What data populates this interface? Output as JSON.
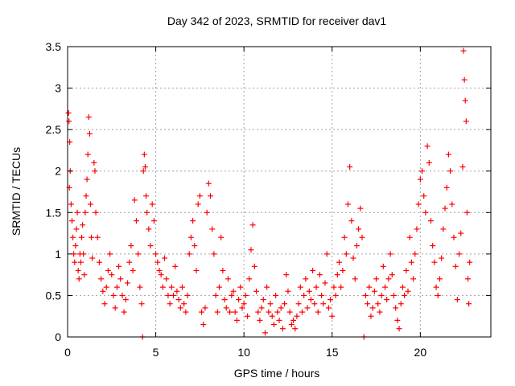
{
  "chart_data": {
    "type": "scatter",
    "title": "Day 342 of 2023, SRMTID for receiver dav1",
    "xlabel": "GPS time / hours",
    "ylabel": "SRMTID / TECUs",
    "xlim": [
      0,
      24
    ],
    "ylim": [
      0,
      3.5
    ],
    "xticks": [
      0,
      5,
      10,
      15,
      20
    ],
    "xtick_labels": [
      "0",
      "5",
      "10",
      "15",
      "20"
    ],
    "yticks": [
      0,
      0.5,
      1,
      1.5,
      2,
      2.5,
      3,
      3.5
    ],
    "ytick_labels": [
      "0",
      "0.5",
      "1",
      "1.5",
      "2",
      "2.5",
      "3",
      "3.5"
    ],
    "grid": true,
    "marker": "plus",
    "series": [
      {
        "name": "SRMTID",
        "color": "#ff0000",
        "points": [
          [
            0.05,
            2.7
          ],
          [
            0.08,
            2.6
          ],
          [
            0.12,
            2.35
          ],
          [
            0.15,
            2.0
          ],
          [
            0.1,
            1.8
          ],
          [
            0.2,
            1.6
          ],
          [
            0.25,
            1.4
          ],
          [
            0.3,
            1.2
          ],
          [
            0.35,
            1.0
          ],
          [
            0.4,
            0.9
          ],
          [
            0.45,
            1.1
          ],
          [
            0.5,
            1.3
          ],
          [
            0.55,
            1.5
          ],
          [
            0.6,
            0.8
          ],
          [
            0.65,
            0.7
          ],
          [
            0.7,
            1.0
          ],
          [
            0.75,
            0.9
          ],
          [
            0.8,
            1.2
          ],
          [
            0.85,
            1.35
          ],
          [
            0.9,
            1.0
          ],
          [
            0.95,
            0.75
          ],
          [
            1.0,
            1.5
          ],
          [
            1.05,
            1.7
          ],
          [
            1.1,
            1.9
          ],
          [
            1.15,
            2.2
          ],
          [
            1.2,
            2.65
          ],
          [
            1.25,
            2.45
          ],
          [
            1.3,
            1.6
          ],
          [
            1.35,
            1.2
          ],
          [
            1.4,
            0.95
          ],
          [
            1.5,
            2.1
          ],
          [
            1.55,
            2.0
          ],
          [
            1.6,
            1.5
          ],
          [
            1.7,
            1.2
          ],
          [
            1.8,
            0.9
          ],
          [
            1.9,
            0.7
          ],
          [
            2.0,
            0.55
          ],
          [
            2.1,
            0.4
          ],
          [
            2.2,
            0.6
          ],
          [
            2.3,
            0.8
          ],
          [
            2.4,
            1.0
          ],
          [
            2.5,
            0.75
          ],
          [
            2.6,
            0.5
          ],
          [
            2.7,
            0.35
          ],
          [
            2.8,
            0.6
          ],
          [
            2.9,
            0.85
          ],
          [
            3.0,
            0.7
          ],
          [
            3.1,
            0.5
          ],
          [
            3.2,
            0.3
          ],
          [
            3.3,
            0.45
          ],
          [
            3.4,
            0.65
          ],
          [
            3.5,
            0.9
          ],
          [
            3.6,
            1.1
          ],
          [
            3.7,
            0.8
          ],
          [
            3.8,
            1.65
          ],
          [
            3.9,
            1.4
          ],
          [
            4.0,
            1.0
          ],
          [
            4.1,
            0.6
          ],
          [
            4.2,
            0.4
          ],
          [
            4.25,
            0.0
          ],
          [
            4.3,
            2.0
          ],
          [
            4.35,
            2.2
          ],
          [
            4.4,
            2.05
          ],
          [
            4.45,
            1.7
          ],
          [
            4.5,
            1.5
          ],
          [
            4.6,
            1.3
          ],
          [
            4.7,
            1.1
          ],
          [
            4.8,
            1.6
          ],
          [
            4.9,
            1.4
          ],
          [
            5.0,
            1.0
          ],
          [
            5.1,
            0.9
          ],
          [
            5.2,
            0.8
          ],
          [
            5.3,
            0.75
          ],
          [
            5.4,
            0.6
          ],
          [
            5.5,
            0.95
          ],
          [
            5.6,
            0.7
          ],
          [
            5.7,
            0.5
          ],
          [
            5.8,
            0.4
          ],
          [
            5.9,
            0.6
          ],
          [
            6.0,
            0.5
          ],
          [
            6.1,
            0.85
          ],
          [
            6.2,
            0.55
          ],
          [
            6.3,
            0.45
          ],
          [
            6.4,
            0.35
          ],
          [
            6.5,
            0.6
          ],
          [
            6.6,
            0.4
          ],
          [
            6.7,
            0.3
          ],
          [
            6.8,
            0.5
          ],
          [
            6.9,
            1.0
          ],
          [
            7.0,
            1.2
          ],
          [
            7.1,
            1.4
          ],
          [
            7.2,
            1.1
          ],
          [
            7.3,
            0.8
          ],
          [
            7.4,
            1.6
          ],
          [
            7.5,
            1.7
          ],
          [
            7.6,
            0.3
          ],
          [
            7.7,
            0.15
          ],
          [
            7.8,
            0.35
          ],
          [
            7.9,
            1.5
          ],
          [
            8.0,
            1.85
          ],
          [
            8.1,
            1.7
          ],
          [
            8.2,
            1.3
          ],
          [
            8.3,
            1.0
          ],
          [
            8.4,
            0.5
          ],
          [
            8.5,
            0.3
          ],
          [
            8.6,
            0.6
          ],
          [
            8.7,
            1.2
          ],
          [
            8.8,
            0.8
          ],
          [
            8.9,
            0.45
          ],
          [
            9.0,
            0.35
          ],
          [
            9.1,
            0.7
          ],
          [
            9.2,
            0.3
          ],
          [
            9.3,
            0.5
          ],
          [
            9.4,
            0.55
          ],
          [
            9.5,
            0.3
          ],
          [
            9.6,
            0.2
          ],
          [
            9.7,
            0.45
          ],
          [
            9.8,
            0.6
          ],
          [
            9.9,
            0.35
          ],
          [
            10.0,
            0.4
          ],
          [
            10.1,
            0.5
          ],
          [
            10.2,
            0.25
          ],
          [
            10.3,
            0.7
          ],
          [
            10.4,
            1.05
          ],
          [
            10.5,
            1.35
          ],
          [
            10.6,
            0.85
          ],
          [
            10.7,
            0.55
          ],
          [
            10.8,
            0.3
          ],
          [
            10.9,
            0.2
          ],
          [
            11.0,
            0.35
          ],
          [
            11.1,
            0.45
          ],
          [
            11.2,
            0.05
          ],
          [
            11.3,
            0.6
          ],
          [
            11.4,
            0.3
          ],
          [
            11.5,
            0.4
          ],
          [
            11.6,
            0.25
          ],
          [
            11.7,
            0.15
          ],
          [
            11.8,
            0.5
          ],
          [
            11.9,
            0.3
          ],
          [
            12.0,
            0.2
          ],
          [
            12.1,
            0.35
          ],
          [
            12.2,
            0.1
          ],
          [
            12.3,
            0.4
          ],
          [
            12.4,
            0.75
          ],
          [
            12.5,
            0.55
          ],
          [
            12.6,
            0.3
          ],
          [
            12.7,
            0.15
          ],
          [
            12.8,
            0.2
          ],
          [
            12.9,
            0.1
          ],
          [
            13.0,
            0.25
          ],
          [
            13.1,
            0.4
          ],
          [
            13.2,
            0.6
          ],
          [
            13.3,
            0.3
          ],
          [
            13.4,
            0.5
          ],
          [
            13.5,
            0.7
          ],
          [
            13.6,
            0.35
          ],
          [
            13.7,
            0.55
          ],
          [
            13.8,
            0.45
          ],
          [
            13.9,
            0.8
          ],
          [
            14.0,
            0.4
          ],
          [
            14.1,
            0.6
          ],
          [
            14.2,
            0.3
          ],
          [
            14.3,
            0.75
          ],
          [
            14.4,
            0.5
          ],
          [
            14.5,
            0.4
          ],
          [
            14.6,
            0.65
          ],
          [
            14.7,
            1.0
          ],
          [
            14.8,
            0.35
          ],
          [
            14.9,
            0.45
          ],
          [
            15.0,
            0.25
          ],
          [
            15.1,
            0.6
          ],
          [
            15.2,
            0.5
          ],
          [
            15.3,
            0.75
          ],
          [
            15.4,
            0.9
          ],
          [
            15.5,
            0.6
          ],
          [
            15.6,
            0.8
          ],
          [
            15.7,
            1.2
          ],
          [
            15.8,
            1.0
          ],
          [
            15.9,
            1.6
          ],
          [
            16.0,
            2.05
          ],
          [
            16.1,
            1.4
          ],
          [
            16.2,
            0.95
          ],
          [
            16.3,
            0.7
          ],
          [
            16.4,
            1.1
          ],
          [
            16.5,
            1.3
          ],
          [
            16.6,
            1.55
          ],
          [
            16.7,
            1.2
          ],
          [
            16.8,
            0.0
          ],
          [
            16.9,
            0.5
          ],
          [
            17.0,
            0.4
          ],
          [
            17.1,
            0.6
          ],
          [
            17.2,
            0.25
          ],
          [
            17.3,
            0.35
          ],
          [
            17.4,
            0.55
          ],
          [
            17.5,
            0.7
          ],
          [
            17.6,
            0.4
          ],
          [
            17.7,
            0.3
          ],
          [
            17.8,
            0.5
          ],
          [
            17.9,
            0.85
          ],
          [
            18.0,
            0.6
          ],
          [
            18.1,
            0.45
          ],
          [
            18.2,
            0.7
          ],
          [
            18.3,
            1.0
          ],
          [
            18.4,
            0.75
          ],
          [
            18.5,
            0.5
          ],
          [
            18.6,
            0.35
          ],
          [
            18.7,
            0.2
          ],
          [
            18.8,
            0.1
          ],
          [
            18.9,
            0.4
          ],
          [
            19.0,
            0.6
          ],
          [
            19.1,
            0.5
          ],
          [
            19.2,
            0.8
          ],
          [
            19.3,
            0.55
          ],
          [
            19.4,
            1.2
          ],
          [
            19.5,
            0.9
          ],
          [
            19.6,
            0.7
          ],
          [
            19.7,
            1.0
          ],
          [
            19.8,
            1.3
          ],
          [
            19.9,
            1.6
          ],
          [
            20.0,
            1.9
          ],
          [
            20.1,
            2.0
          ],
          [
            20.2,
            1.7
          ],
          [
            20.3,
            1.5
          ],
          [
            20.4,
            2.3
          ],
          [
            20.5,
            2.1
          ],
          [
            20.6,
            1.4
          ],
          [
            20.7,
            1.1
          ],
          [
            20.8,
            0.9
          ],
          [
            20.9,
            0.6
          ],
          [
            21.0,
            0.5
          ],
          [
            21.1,
            0.7
          ],
          [
            21.2,
            0.95
          ],
          [
            21.3,
            1.3
          ],
          [
            21.4,
            1.55
          ],
          [
            21.5,
            1.8
          ],
          [
            21.6,
            2.2
          ],
          [
            21.7,
            2.0
          ],
          [
            21.8,
            1.6
          ],
          [
            21.9,
            1.2
          ],
          [
            22.0,
            0.85
          ],
          [
            22.1,
            0.45
          ],
          [
            22.2,
            1.0
          ],
          [
            22.3,
            1.25
          ],
          [
            22.4,
            2.05
          ],
          [
            22.45,
            3.45
          ],
          [
            22.5,
            3.1
          ],
          [
            22.55,
            2.85
          ],
          [
            22.6,
            2.6
          ],
          [
            22.65,
            1.5
          ],
          [
            22.7,
            0.7
          ],
          [
            22.75,
            0.4
          ],
          [
            22.8,
            0.9
          ]
        ]
      }
    ]
  }
}
